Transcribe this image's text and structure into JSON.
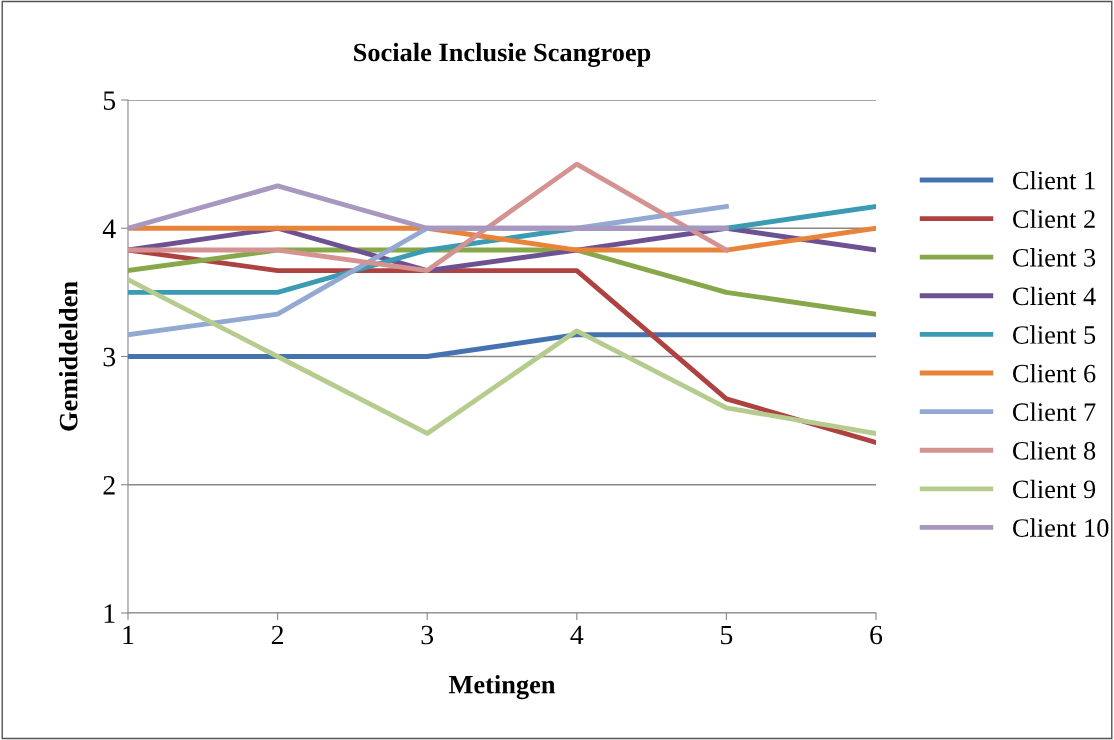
{
  "chart_data": {
    "type": "line",
    "title": "Sociale Inclusie Scangroep",
    "xlabel": "Metingen",
    "ylabel": "Gemiddelden",
    "x": [
      1,
      2,
      3,
      4,
      5,
      6
    ],
    "xlim": [
      1,
      6
    ],
    "xticks": [
      1,
      2,
      3,
      4,
      5,
      6
    ],
    "ylim": [
      1,
      5
    ],
    "yticks": [
      1,
      2,
      3,
      4,
      5
    ],
    "grid": "y",
    "legend": "right",
    "marker": "none",
    "line_style": "solid",
    "series": [
      {
        "name": "Client 1",
        "color": "#4573b0",
        "values": [
          3,
          3,
          3,
          3.17,
          3.17,
          3.17
        ]
      },
      {
        "name": "Client 2",
        "color": "#ad4240",
        "values": [
          3.83,
          3.67,
          3.67,
          3.67,
          2.67,
          2.33
        ]
      },
      {
        "name": "Client 3",
        "color": "#87a84a",
        "values": [
          3.67,
          3.83,
          3.83,
          3.83,
          3.5,
          3.33
        ]
      },
      {
        "name": "Client 4",
        "color": "#6e5193",
        "values": [
          3.83,
          4,
          3.67,
          3.83,
          4,
          3.83
        ]
      },
      {
        "name": "Client 5",
        "color": "#3a9bb2",
        "values": [
          3.5,
          3.5,
          3.83,
          4,
          4,
          4.17
        ]
      },
      {
        "name": "Client 6",
        "color": "#e8833a",
        "values": [
          4,
          4,
          4,
          3.83,
          3.83,
          4
        ]
      },
      {
        "name": "Client 7",
        "color": "#93a9d1",
        "values": [
          3.17,
          3.33,
          4,
          4,
          4.17,
          null
        ]
      },
      {
        "name": "Client 8",
        "color": "#d49290",
        "values": [
          3.83,
          3.83,
          3.67,
          4.5,
          3.83,
          null
        ]
      },
      {
        "name": "Client 9",
        "color": "#b6cc8f",
        "values": [
          3.6,
          3.0,
          2.4,
          3.2,
          2.6,
          2.4
        ]
      },
      {
        "name": "Client 10",
        "color": "#a898c0",
        "values": [
          4,
          4.33,
          4,
          4,
          4,
          null
        ]
      }
    ]
  }
}
